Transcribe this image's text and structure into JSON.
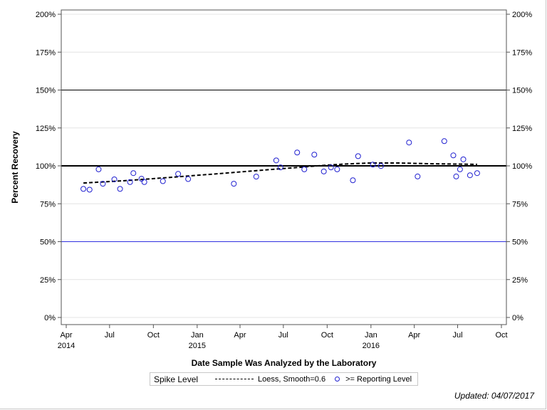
{
  "chart_data": {
    "type": "scatter",
    "xlabel": "Date Sample Was Analyzed by the Laboratory",
    "ylabel": "Percent Recovery",
    "xlim": [
      "2014-04-01",
      "2016-10-01"
    ],
    "ylim": [
      0,
      200
    ],
    "grid": true,
    "x_ticks": [
      {
        "date": "2014-04-01",
        "label": "Apr",
        "year": "2014"
      },
      {
        "date": "2014-07-01",
        "label": "Jul",
        "year": ""
      },
      {
        "date": "2014-10-01",
        "label": "Oct",
        "year": ""
      },
      {
        "date": "2015-01-01",
        "label": "Jan",
        "year": "2015"
      },
      {
        "date": "2015-04-01",
        "label": "Apr",
        "year": ""
      },
      {
        "date": "2015-07-01",
        "label": "Jul",
        "year": ""
      },
      {
        "date": "2015-10-01",
        "label": "Oct",
        "year": ""
      },
      {
        "date": "2016-01-01",
        "label": "Jan",
        "year": "2016"
      },
      {
        "date": "2016-04-01",
        "label": "Apr",
        "year": ""
      },
      {
        "date": "2016-07-01",
        "label": "Jul",
        "year": ""
      },
      {
        "date": "2016-10-01",
        "label": "Oct",
        "year": ""
      }
    ],
    "y_ticks": [
      {
        "value": 0,
        "label": "0%"
      },
      {
        "value": 25,
        "label": "25%"
      },
      {
        "value": 50,
        "label": "50%"
      },
      {
        "value": 75,
        "label": "75%"
      },
      {
        "value": 100,
        "label": "100%"
      },
      {
        "value": 125,
        "label": "125%"
      },
      {
        "value": 150,
        "label": "150%"
      },
      {
        "value": 175,
        "label": "175%"
      },
      {
        "value": 200,
        "label": "200%"
      }
    ],
    "reference_lines": [
      {
        "value": 150,
        "color": "#000000",
        "weight": "thin"
      },
      {
        "value": 100,
        "color": "#000000",
        "weight": "thick"
      },
      {
        "value": 50,
        "color": "#3030e0",
        "weight": "thin"
      }
    ],
    "points": {
      "name": ">= Reporting Level",
      "color": "#2020d0",
      "x": [
        "2014-05-07",
        "2014-05-20",
        "2014-06-08",
        "2014-06-17",
        "2014-07-11",
        "2014-07-23",
        "2014-08-13",
        "2014-08-20",
        "2014-09-06",
        "2014-09-12",
        "2014-10-21",
        "2014-11-22",
        "2014-12-13",
        "2015-03-19",
        "2015-05-05",
        "2015-06-16",
        "2015-06-25",
        "2015-07-30",
        "2015-08-14",
        "2015-09-04",
        "2015-09-24",
        "2015-10-09",
        "2015-10-22",
        "2015-11-24",
        "2015-12-05",
        "2016-01-05",
        "2016-01-22",
        "2016-03-21",
        "2016-04-08",
        "2016-06-03",
        "2016-06-22",
        "2016-06-28",
        "2016-07-06",
        "2016-07-13",
        "2016-07-27",
        "2016-08-11"
      ],
      "y": [
        84.8,
        84.3,
        97.7,
        88.2,
        91.1,
        84.8,
        89.3,
        95.2,
        91.5,
        89.3,
        89.9,
        94.7,
        91.3,
        88.2,
        92.9,
        103.6,
        99.0,
        108.8,
        97.7,
        107.4,
        96.3,
        99.0,
        97.7,
        90.5,
        106.4,
        100.8,
        99.9,
        115.4,
        93.0,
        116.3,
        106.9,
        93.0,
        97.7,
        104.3,
        93.8,
        95.2
      ]
    },
    "loess": {
      "name": "Loess, Smooth=0.6",
      "x": [
        "2014-05-07",
        "2014-08-01",
        "2014-11-01",
        "2015-02-01",
        "2015-05-01",
        "2015-07-01",
        "2015-08-15",
        "2015-10-01",
        "2015-11-15",
        "2016-01-01",
        "2016-03-01",
        "2016-05-01",
        "2016-08-11"
      ],
      "y": [
        88.7,
        90.2,
        92.3,
        94.5,
        96.7,
        98.2,
        99.3,
        100.5,
        101.3,
        101.9,
        101.9,
        101.4,
        101.0
      ]
    }
  },
  "legend": {
    "title": "Spike Level",
    "loess_label": "Loess, Smooth=0.6",
    "points_label": ">= Reporting Level"
  },
  "footer": {
    "updated": "Updated: 04/07/2017"
  }
}
